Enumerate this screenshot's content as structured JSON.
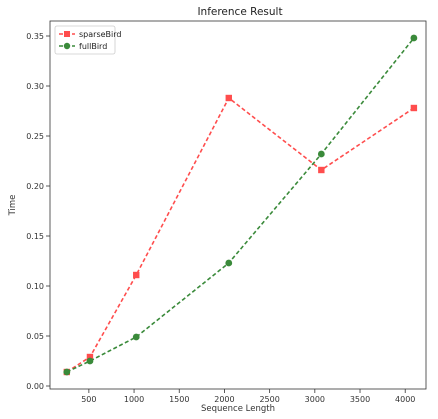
{
  "chart_data": {
    "type": "line",
    "title": "Inference Result",
    "xlabel": "Sequence Length",
    "ylabel": "Time",
    "xlim": [
      70,
      4230
    ],
    "ylim": [
      -0.003,
      0.365
    ],
    "xticks": [
      500,
      1000,
      1500,
      2000,
      2500,
      3000,
      3500,
      4000
    ],
    "yticks": [
      0.0,
      0.05,
      0.1,
      0.15,
      0.2,
      0.25,
      0.3,
      0.35
    ],
    "ytick_labels": [
      "0.00",
      "0.05",
      "0.10",
      "0.15",
      "0.20",
      "0.25",
      "0.30",
      "0.35"
    ],
    "grid": false,
    "legend_position": "top-left",
    "series": [
      {
        "name": "sparseBird",
        "color": "#ff4d4d",
        "marker": "square",
        "linestyle": "dashed",
        "x": [
          256,
          512,
          1024,
          2048,
          3072,
          4096
        ],
        "y": [
          0.014,
          0.029,
          0.111,
          0.288,
          0.216,
          0.278
        ]
      },
      {
        "name": "fullBird",
        "color": "#3a8a3a",
        "marker": "circle",
        "linestyle": "dashed",
        "x": [
          256,
          512,
          1024,
          2048,
          3072,
          4096
        ],
        "y": [
          0.014,
          0.025,
          0.049,
          0.123,
          0.232,
          0.348
        ]
      }
    ]
  }
}
